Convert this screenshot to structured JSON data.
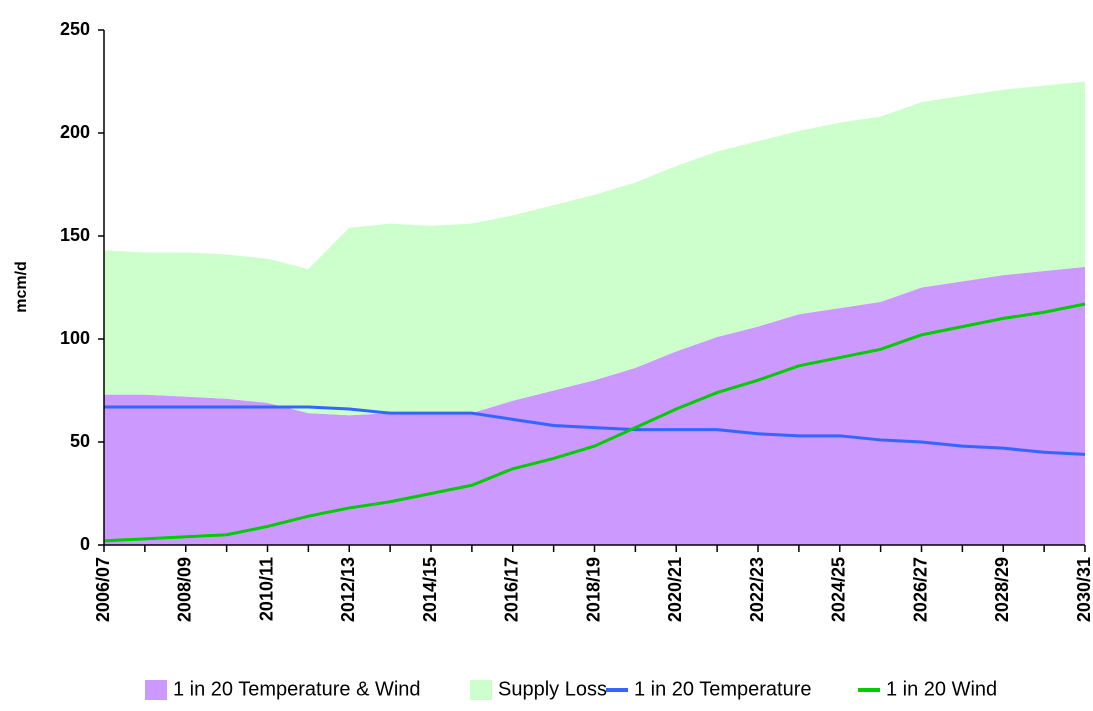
{
  "chart_data": {
    "type": "area",
    "ylabel": "mcm/d",
    "categories": [
      "2006/07",
      null,
      "2008/09",
      null,
      "2010/11",
      null,
      "2012/13",
      null,
      "2014/15",
      null,
      "2016/17",
      null,
      "2018/19",
      null,
      "2020/21",
      null,
      "2022/23",
      null,
      "2024/25",
      null,
      "2026/27",
      null,
      "2028/29",
      null,
      "2030/31"
    ],
    "ylim": [
      0,
      250
    ],
    "yticks": [
      0,
      50,
      100,
      150,
      200,
      250
    ],
    "grid": false,
    "legend": "bottom",
    "series": [
      {
        "name": "1 in 20 Temperature & Wind",
        "type": "area",
        "stacked": true,
        "color": "#cc99ff",
        "values": [
          73,
          73,
          72,
          71,
          69,
          64,
          63,
          64,
          64,
          64,
          70,
          75,
          80,
          86,
          94,
          101,
          106,
          112,
          115,
          118,
          125,
          128,
          131,
          133,
          135
        ]
      },
      {
        "name": "Supply Loss",
        "type": "area",
        "stacked": true,
        "color": "#ccffcc",
        "values": [
          70,
          69,
          70,
          70,
          70,
          70,
          91,
          92,
          91,
          92,
          90,
          90,
          90,
          90,
          90,
          90,
          90,
          89,
          90,
          90,
          90,
          90,
          90,
          90,
          90
        ]
      },
      {
        "name": "1 in 20 Temperature",
        "type": "line",
        "color": "#3366ff",
        "values": [
          67,
          67,
          67,
          67,
          67,
          67,
          66,
          64,
          64,
          64,
          61,
          58,
          57,
          56,
          56,
          56,
          54,
          53,
          53,
          51,
          50,
          48,
          47,
          45,
          44
        ]
      },
      {
        "name": "1 in 20 Wind",
        "type": "line",
        "color": "#00cc00",
        "values": [
          2,
          3,
          4,
          5,
          9,
          14,
          18,
          21,
          25,
          29,
          37,
          42,
          48,
          57,
          66,
          74,
          80,
          87,
          91,
          95,
          102,
          106,
          110,
          113,
          117
        ]
      }
    ]
  }
}
